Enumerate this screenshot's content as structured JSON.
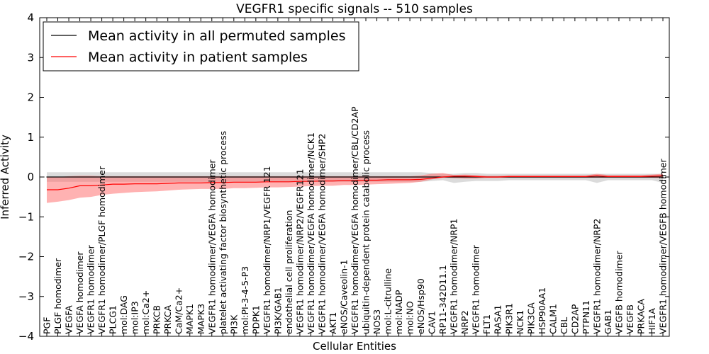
{
  "chart_data": {
    "type": "line",
    "title": "VEGFR1 specific signals -- 510 samples",
    "xlabel": "Cellular Entities",
    "ylabel": "Inferred Activity",
    "ylim": [
      -4,
      4
    ],
    "yticks": [
      "4",
      "3",
      "2",
      "1",
      "0",
      "−1",
      "−2",
      "−3",
      "−4"
    ],
    "legend_position": "top-left",
    "categories": [
      "PGF",
      "PLGF homodimer",
      "VEGFA",
      "VEGFA homodimer",
      "VEGFR1 homodimer",
      "VEGFR1 homodimer/PLGF homodimer",
      "PLCG1",
      "mol:DAG",
      "mol:IP3",
      "mol:Ca2+",
      "PRKCB",
      "PRKCA",
      "CaM/Ca2+",
      "MAPK1",
      "MAPK3",
      "VEGFR1 homodimer/VEGFA homodimer",
      "platelet activating factor biosynthetic process",
      "PI3K",
      "mol:PI-3-4-5-P3",
      "PDPK1",
      "VEGFR1 homodimer/NRP1/VEGFR 121",
      "PI3K/GAB1",
      "endothelial cell proliferation",
      "VEGFR1 homodimer/NRP2/VEGFR121",
      "VEGFR1 homodimer/VEGFA homodimer/NCK1",
      "VEGFR1 homodimer/VEGFA homodimer/SHP2",
      "AKT1",
      "eNOS/Caveolin-1",
      "VEGFR1 homodimer/VEGFA homodimer/CBL/CD2AP",
      "ubiquitin-dependent protein catabolic process",
      "NOS3",
      "mol:L-citrulline",
      "mol:NADP",
      "mol:NO",
      "eNOS/Hsp90",
      "CAV1",
      "RP11-342D11.1",
      "VEGFR1 homodimer/NRP1",
      "NRP2",
      "VEGFR1 homodimer",
      "FLT1",
      "RASA1",
      "PIK3R1",
      "NCK1",
      "PIK3CA",
      "HSP90AA1",
      "CALM1",
      "CBL",
      "CD2AP",
      "PTPN11",
      "VEGFR1 homodimer/NRP2",
      "GAB1",
      "VEGFB homodimer",
      "VEGFB",
      "PRKACA",
      "HIF1A",
      "VEGFR1 homodimer/VEGFB homodimer"
    ],
    "series": [
      {
        "name": "Mean activity in all permuted samples",
        "color": "#000000",
        "values": [
          0,
          0,
          0,
          0,
          0,
          0,
          0,
          0,
          0,
          0,
          0,
          0,
          0,
          0,
          0,
          0,
          0,
          0,
          0,
          0,
          0,
          0,
          0,
          0,
          0,
          0,
          0,
          0,
          0,
          0,
          0,
          0,
          0,
          0,
          0,
          0,
          0,
          0,
          0,
          0,
          0,
          0,
          0,
          0,
          0,
          0,
          0,
          0,
          0,
          0,
          0,
          0,
          0,
          0,
          0,
          0,
          0
        ],
        "band_low": [
          -0.12,
          -0.12,
          -0.12,
          -0.12,
          -0.12,
          -0.12,
          -0.12,
          -0.12,
          -0.12,
          -0.12,
          -0.12,
          -0.12,
          -0.12,
          -0.12,
          -0.12,
          -0.12,
          -0.12,
          -0.12,
          -0.12,
          -0.12,
          -0.12,
          -0.12,
          -0.12,
          -0.12,
          -0.12,
          -0.12,
          -0.12,
          -0.12,
          -0.12,
          -0.12,
          -0.12,
          -0.12,
          -0.12,
          -0.12,
          -0.12,
          -0.1,
          -0.08,
          -0.15,
          -0.12,
          -0.1,
          -0.1,
          -0.1,
          -0.08,
          -0.08,
          -0.08,
          -0.08,
          -0.08,
          -0.08,
          -0.08,
          -0.08,
          -0.15,
          -0.08,
          -0.08,
          -0.08,
          -0.08,
          -0.08,
          -0.15
        ],
        "band_high": [
          0.12,
          0.12,
          0.12,
          0.12,
          0.12,
          0.12,
          0.12,
          0.12,
          0.12,
          0.12,
          0.12,
          0.12,
          0.12,
          0.12,
          0.12,
          0.12,
          0.12,
          0.12,
          0.12,
          0.12,
          0.12,
          0.12,
          0.12,
          0.12,
          0.12,
          0.12,
          0.12,
          0.12,
          0.12,
          0.12,
          0.12,
          0.12,
          0.12,
          0.12,
          0.12,
          0.1,
          0.08,
          0.08,
          0.1,
          0.1,
          0.08,
          0.08,
          0.08,
          0.08,
          0.08,
          0.08,
          0.08,
          0.08,
          0.08,
          0.08,
          0.08,
          0.08,
          0.08,
          0.08,
          0.08,
          0.08,
          0.08
        ]
      },
      {
        "name": "Mean activity in patient samples",
        "color": "#ff0000",
        "values": [
          -0.32,
          -0.32,
          -0.28,
          -0.22,
          -0.22,
          -0.2,
          -0.18,
          -0.18,
          -0.17,
          -0.17,
          -0.17,
          -0.16,
          -0.15,
          -0.15,
          -0.15,
          -0.14,
          -0.14,
          -0.13,
          -0.13,
          -0.13,
          -0.12,
          -0.12,
          -0.12,
          -0.11,
          -0.11,
          -0.1,
          -0.1,
          -0.09,
          -0.09,
          -0.08,
          -0.08,
          -0.07,
          -0.07,
          -0.07,
          -0.06,
          -0.03,
          0.0,
          0.02,
          0.02,
          0.01,
          0.0,
          0.0,
          0.01,
          0.01,
          0.01,
          0.01,
          0.01,
          0.01,
          0.01,
          0.01,
          0.03,
          0.01,
          0.01,
          0.01,
          0.01,
          0.02,
          0.03
        ],
        "band_low": [
          -0.65,
          -0.62,
          -0.58,
          -0.52,
          -0.5,
          -0.45,
          -0.42,
          -0.4,
          -0.38,
          -0.37,
          -0.36,
          -0.34,
          -0.32,
          -0.31,
          -0.3,
          -0.3,
          -0.3,
          -0.28,
          -0.28,
          -0.27,
          -0.26,
          -0.26,
          -0.25,
          -0.24,
          -0.23,
          -0.22,
          -0.22,
          -0.2,
          -0.2,
          -0.19,
          -0.18,
          -0.17,
          -0.16,
          -0.15,
          -0.12,
          -0.06,
          -0.02,
          -0.03,
          -0.04,
          -0.04,
          -0.02,
          -0.02,
          -0.02,
          -0.02,
          -0.02,
          -0.02,
          -0.02,
          -0.02,
          -0.02,
          -0.02,
          -0.02,
          -0.02,
          -0.02,
          -0.02,
          -0.02,
          -0.02,
          -0.03
        ],
        "band_high": [
          0.0,
          0.0,
          0.02,
          0.03,
          0.03,
          0.02,
          0.02,
          0.02,
          0.02,
          0.02,
          0.02,
          0.02,
          0.02,
          0.02,
          0.02,
          0.02,
          0.02,
          0.02,
          0.02,
          0.02,
          0.02,
          0.02,
          0.02,
          0.02,
          0.02,
          0.02,
          0.02,
          0.02,
          0.02,
          0.02,
          0.02,
          0.02,
          0.02,
          0.02,
          0.04,
          0.08,
          0.1,
          0.05,
          0.06,
          0.05,
          0.03,
          0.03,
          0.04,
          0.04,
          0.04,
          0.04,
          0.04,
          0.04,
          0.04,
          0.04,
          0.08,
          0.05,
          0.05,
          0.05,
          0.05,
          0.06,
          0.08
        ]
      }
    ]
  }
}
